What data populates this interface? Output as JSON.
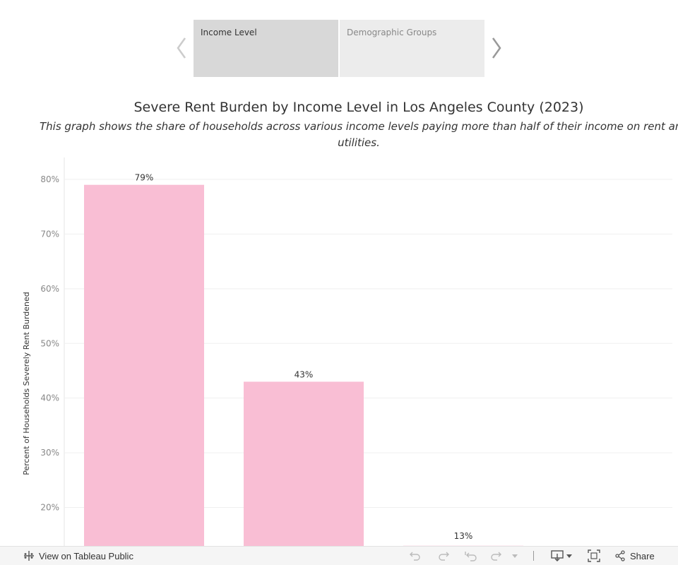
{
  "story": {
    "points": [
      {
        "label": "Income Level",
        "active": true
      },
      {
        "label": "Demographic Groups",
        "active": false
      }
    ]
  },
  "chart_data": {
    "type": "bar",
    "title": "Severe Rent Burden by Income Level in Los Angeles County (2023)",
    "subtitle_lines": [
      "This graph shows the share of households across various income levels paying more than half of their income on rent an",
      "utilities."
    ],
    "ylabel": "Percent of Households Severely Rent Burdened",
    "ylim": [
      14,
      84
    ],
    "yticks": [
      20,
      30,
      40,
      50,
      60,
      70,
      80
    ],
    "ytick_labels": [
      "20%",
      "30%",
      "40%",
      "50%",
      "60%",
      "70%",
      "80%"
    ],
    "values": [
      79,
      43,
      13
    ],
    "value_labels": [
      "79%",
      "43%",
      "13%"
    ],
    "bar_color": "#f9bed4",
    "grid": true
  },
  "toolbar": {
    "view_link": "View on Tableau Public",
    "share_label": "Share"
  },
  "colors": {
    "active_tab": "#d8d8d8",
    "inactive_tab": "#ececec",
    "bar": "#f9bed4",
    "gridline": "#efefef"
  }
}
